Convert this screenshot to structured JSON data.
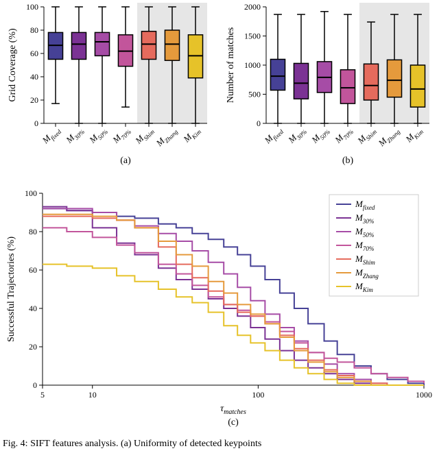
{
  "colors": {
    "background": "#ffffff",
    "shaded_region": "#e6e6e6",
    "axis": "#000000",
    "median": "#000000",
    "text": "#000000"
  },
  "methods": [
    {
      "key": "fixed",
      "label": "M",
      "sub": "fixed",
      "color": "#464196"
    },
    {
      "key": "30",
      "label": "M",
      "sub": "30%",
      "color": "#7b3294"
    },
    {
      "key": "50",
      "label": "M",
      "sub": "50%",
      "color": "#a64ca6"
    },
    {
      "key": "70",
      "label": "M",
      "sub": "70%",
      "color": "#c2559b"
    },
    {
      "key": "Shim",
      "label": "M",
      "sub": "Shim",
      "color": "#e56b5d"
    },
    {
      "key": "Zhang",
      "label": "M",
      "sub": "Zhang",
      "color": "#e59a3c"
    },
    {
      "key": "Kim",
      "label": "M",
      "sub": "Kim",
      "color": "#e6c229"
    }
  ],
  "panel_a": {
    "type": "boxplot",
    "ylabel": "Grid Coverage (%)",
    "ylim": [
      0,
      100
    ],
    "ytick_step": 20,
    "shaded_from_index": 4,
    "box_width": 0.62,
    "boxes": [
      {
        "wlo": 17,
        "q1": 55,
        "med": 67,
        "q3": 78,
        "whi": 100
      },
      {
        "wlo": 0,
        "q1": 55,
        "med": 68,
        "q3": 78,
        "whi": 100
      },
      {
        "wlo": 0,
        "q1": 58,
        "med": 70,
        "q3": 78,
        "whi": 100
      },
      {
        "wlo": 14,
        "q1": 49,
        "med": 62,
        "q3": 76,
        "whi": 100
      },
      {
        "wlo": 0,
        "q1": 55,
        "med": 68,
        "q3": 79,
        "whi": 100
      },
      {
        "wlo": 0,
        "q1": 54,
        "med": 68,
        "q3": 80,
        "whi": 100
      },
      {
        "wlo": 0,
        "q1": 39,
        "med": 58,
        "q3": 76,
        "whi": 100
      }
    ],
    "sub_caption": "(a)"
  },
  "panel_b": {
    "type": "boxplot",
    "ylabel": "Number of matches",
    "ylim": [
      0,
      2000
    ],
    "ytick_step": 500,
    "shaded_from_index": 4,
    "box_width": 0.62,
    "boxes": [
      {
        "wlo": 0,
        "q1": 570,
        "med": 810,
        "q3": 1100,
        "whi": 1870
      },
      {
        "wlo": 0,
        "q1": 420,
        "med": 690,
        "q3": 1030,
        "whi": 1870
      },
      {
        "wlo": 0,
        "q1": 530,
        "med": 790,
        "q3": 1060,
        "whi": 1920
      },
      {
        "wlo": 0,
        "q1": 340,
        "med": 610,
        "q3": 920,
        "whi": 1870
      },
      {
        "wlo": 0,
        "q1": 400,
        "med": 650,
        "q3": 1020,
        "whi": 1740
      },
      {
        "wlo": 0,
        "q1": 450,
        "med": 740,
        "q3": 1090,
        "whi": 1870
      },
      {
        "wlo": 0,
        "q1": 280,
        "med": 590,
        "q3": 1000,
        "whi": 1870
      }
    ],
    "sub_caption": "(b)"
  },
  "panel_c": {
    "type": "line",
    "ylabel": "Successful Trajectories (%)",
    "xlabel": "τ_matches",
    "ylim": [
      0,
      100
    ],
    "ytick_step": 20,
    "xscale": "log",
    "xlim": [
      5,
      1000
    ],
    "xticks": [
      5,
      10,
      100,
      1000
    ],
    "xtick_labels": [
      "5",
      "10",
      "100",
      "1000"
    ],
    "legend_position": "upper-right",
    "sub_caption": "(c)",
    "series": [
      {
        "key": "fixed",
        "points": [
          [
            5,
            92
          ],
          [
            7,
            91
          ],
          [
            10,
            90
          ],
          [
            14,
            88
          ],
          [
            18,
            87
          ],
          [
            25,
            84
          ],
          [
            32,
            82
          ],
          [
            40,
            79
          ],
          [
            50,
            76
          ],
          [
            62,
            72
          ],
          [
            75,
            68
          ],
          [
            90,
            62
          ],
          [
            110,
            55
          ],
          [
            135,
            48
          ],
          [
            165,
            40
          ],
          [
            200,
            32
          ],
          [
            250,
            23
          ],
          [
            300,
            16
          ],
          [
            380,
            10
          ],
          [
            480,
            6
          ],
          [
            600,
            3
          ],
          [
            800,
            1
          ],
          [
            1000,
            0
          ]
        ]
      },
      {
        "key": "30",
        "points": [
          [
            5,
            93
          ],
          [
            7,
            91
          ],
          [
            10,
            82
          ],
          [
            14,
            74
          ],
          [
            18,
            68
          ],
          [
            25,
            61
          ],
          [
            32,
            55
          ],
          [
            40,
            50
          ],
          [
            50,
            45
          ],
          [
            62,
            40
          ],
          [
            75,
            36
          ],
          [
            90,
            30
          ],
          [
            110,
            24
          ],
          [
            135,
            18
          ],
          [
            165,
            13
          ],
          [
            200,
            9
          ],
          [
            250,
            6
          ],
          [
            300,
            3
          ],
          [
            380,
            1
          ],
          [
            480,
            0
          ],
          [
            1000,
            0
          ]
        ]
      },
      {
        "key": "50",
        "points": [
          [
            5,
            92
          ],
          [
            7,
            92
          ],
          [
            10,
            90
          ],
          [
            14,
            86
          ],
          [
            18,
            83
          ],
          [
            25,
            79
          ],
          [
            32,
            75
          ],
          [
            40,
            70
          ],
          [
            50,
            64
          ],
          [
            62,
            58
          ],
          [
            75,
            51
          ],
          [
            90,
            44
          ],
          [
            110,
            37
          ],
          [
            135,
            30
          ],
          [
            165,
            23
          ],
          [
            200,
            17
          ],
          [
            250,
            11
          ],
          [
            300,
            6
          ],
          [
            380,
            3
          ],
          [
            480,
            1
          ],
          [
            600,
            0
          ],
          [
            1000,
            0
          ]
        ]
      },
      {
        "key": "70",
        "points": [
          [
            5,
            82
          ],
          [
            7,
            80
          ],
          [
            10,
            77
          ],
          [
            14,
            73
          ],
          [
            18,
            69
          ],
          [
            25,
            63
          ],
          [
            32,
            58
          ],
          [
            40,
            52
          ],
          [
            50,
            46
          ],
          [
            62,
            42
          ],
          [
            75,
            39
          ],
          [
            90,
            36
          ],
          [
            110,
            33
          ],
          [
            135,
            28
          ],
          [
            165,
            22
          ],
          [
            200,
            17
          ],
          [
            250,
            14
          ],
          [
            300,
            12
          ],
          [
            380,
            9
          ],
          [
            480,
            6
          ],
          [
            600,
            4
          ],
          [
            800,
            2
          ],
          [
            1000,
            1
          ]
        ]
      },
      {
        "key": "Shim",
        "points": [
          [
            5,
            88
          ],
          [
            7,
            88
          ],
          [
            10,
            87
          ],
          [
            14,
            86
          ],
          [
            18,
            82
          ],
          [
            25,
            72
          ],
          [
            32,
            63
          ],
          [
            40,
            56
          ],
          [
            50,
            49
          ],
          [
            62,
            42
          ],
          [
            75,
            38
          ],
          [
            90,
            36
          ],
          [
            110,
            32
          ],
          [
            135,
            26
          ],
          [
            165,
            19
          ],
          [
            200,
            13
          ],
          [
            250,
            8
          ],
          [
            300,
            5
          ],
          [
            380,
            2
          ],
          [
            480,
            1
          ],
          [
            600,
            0
          ],
          [
            1000,
            0
          ]
        ]
      },
      {
        "key": "Zhang",
        "points": [
          [
            5,
            89
          ],
          [
            7,
            89
          ],
          [
            10,
            88
          ],
          [
            14,
            86
          ],
          [
            18,
            82
          ],
          [
            25,
            75
          ],
          [
            32,
            68
          ],
          [
            40,
            62
          ],
          [
            50,
            54
          ],
          [
            62,
            48
          ],
          [
            75,
            42
          ],
          [
            90,
            37
          ],
          [
            110,
            32
          ],
          [
            135,
            25
          ],
          [
            165,
            18
          ],
          [
            200,
            12
          ],
          [
            250,
            7
          ],
          [
            300,
            4
          ],
          [
            380,
            2
          ],
          [
            480,
            0
          ],
          [
            1000,
            0
          ]
        ]
      },
      {
        "key": "Kim",
        "points": [
          [
            5,
            63
          ],
          [
            7,
            62
          ],
          [
            10,
            61
          ],
          [
            14,
            57
          ],
          [
            18,
            54
          ],
          [
            25,
            50
          ],
          [
            32,
            46
          ],
          [
            40,
            43
          ],
          [
            50,
            38
          ],
          [
            62,
            31
          ],
          [
            75,
            26
          ],
          [
            90,
            22
          ],
          [
            110,
            18
          ],
          [
            135,
            13
          ],
          [
            165,
            9
          ],
          [
            200,
            6
          ],
          [
            250,
            3
          ],
          [
            300,
            1
          ],
          [
            380,
            0
          ],
          [
            1000,
            0
          ]
        ]
      }
    ]
  },
  "figure_caption": "Fig. 4: SIFT features analysis. (a) Uniformity of detected keypoints"
}
